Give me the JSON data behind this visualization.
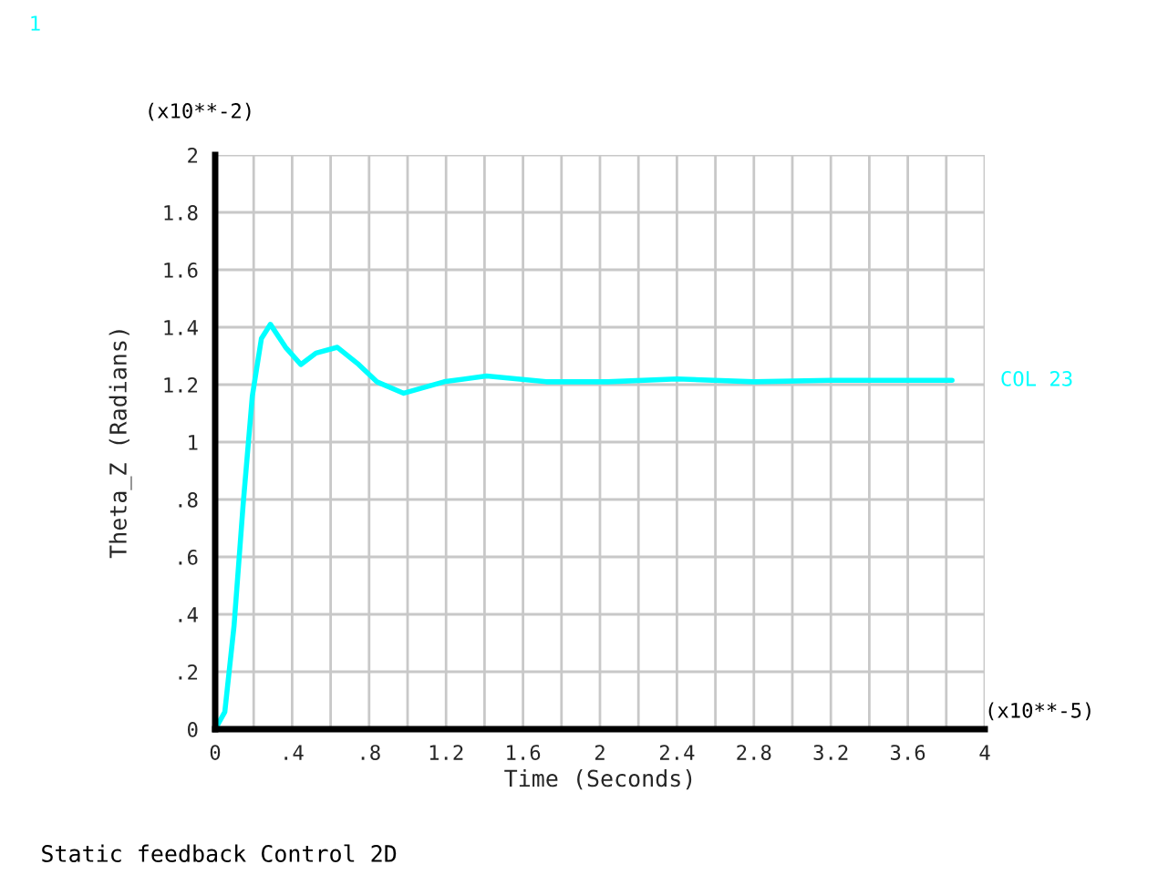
{
  "chart_data": {
    "type": "line",
    "xlabel": "Time (Seconds)",
    "ylabel": "Theta_Z (Radians)",
    "annotations": [
      "(x10**-2)",
      "(x10**-5)",
      "1",
      "Static feedback Control 2D"
    ],
    "x": [
      0,
      0.05,
      0.098,
      0.145,
      0.193,
      0.24,
      0.287,
      0.366,
      0.445,
      0.524,
      0.635,
      0.746,
      0.84,
      0.98,
      1.19,
      1.41,
      1.72,
      2.04,
      2.4,
      2.8,
      3.2,
      3.83
    ],
    "series": [
      {
        "name": "COL 23",
        "color": "#00ffff",
        "values": [
          0,
          0.06,
          0.36,
          0.78,
          1.16,
          1.36,
          1.41,
          1.33,
          1.27,
          1.31,
          1.33,
          1.27,
          1.21,
          1.17,
          1.21,
          1.23,
          1.21,
          1.21,
          1.22,
          1.21,
          1.215,
          1.215
        ]
      }
    ],
    "xlim": [
      0,
      4
    ],
    "ylim": [
      0,
      2
    ],
    "xticks": [
      0,
      {
        "value": 0.2,
        "label": null
      },
      {
        "value": 0.4,
        "label": ".4"
      },
      {
        "value": 0.6,
        "label": null
      },
      {
        "value": 0.8,
        "label": ".8"
      },
      {
        "value": 1.0,
        "label": null
      },
      1.2,
      {
        "value": 1.4,
        "label": null
      },
      1.6,
      {
        "value": 1.8,
        "label": null
      },
      2,
      {
        "value": 2.2,
        "label": null
      },
      2.4,
      {
        "value": 2.6,
        "label": null
      },
      2.8,
      {
        "value": 3.0,
        "label": null
      },
      3.2,
      {
        "value": 3.4,
        "label": null
      },
      3.6,
      {
        "value": 3.8,
        "label": null
      },
      4
    ],
    "yticks": [
      0,
      {
        "value": 0.2,
        "label": ".2"
      },
      {
        "value": 0.4,
        "label": ".4"
      },
      {
        "value": 0.6,
        "label": ".6"
      },
      {
        "value": 0.8,
        "label": ".8"
      },
      1,
      1.2,
      1.4,
      1.6,
      1.8,
      2
    ],
    "grid": true,
    "legend": "right",
    "line_style": "solid",
    "marker": "none"
  }
}
